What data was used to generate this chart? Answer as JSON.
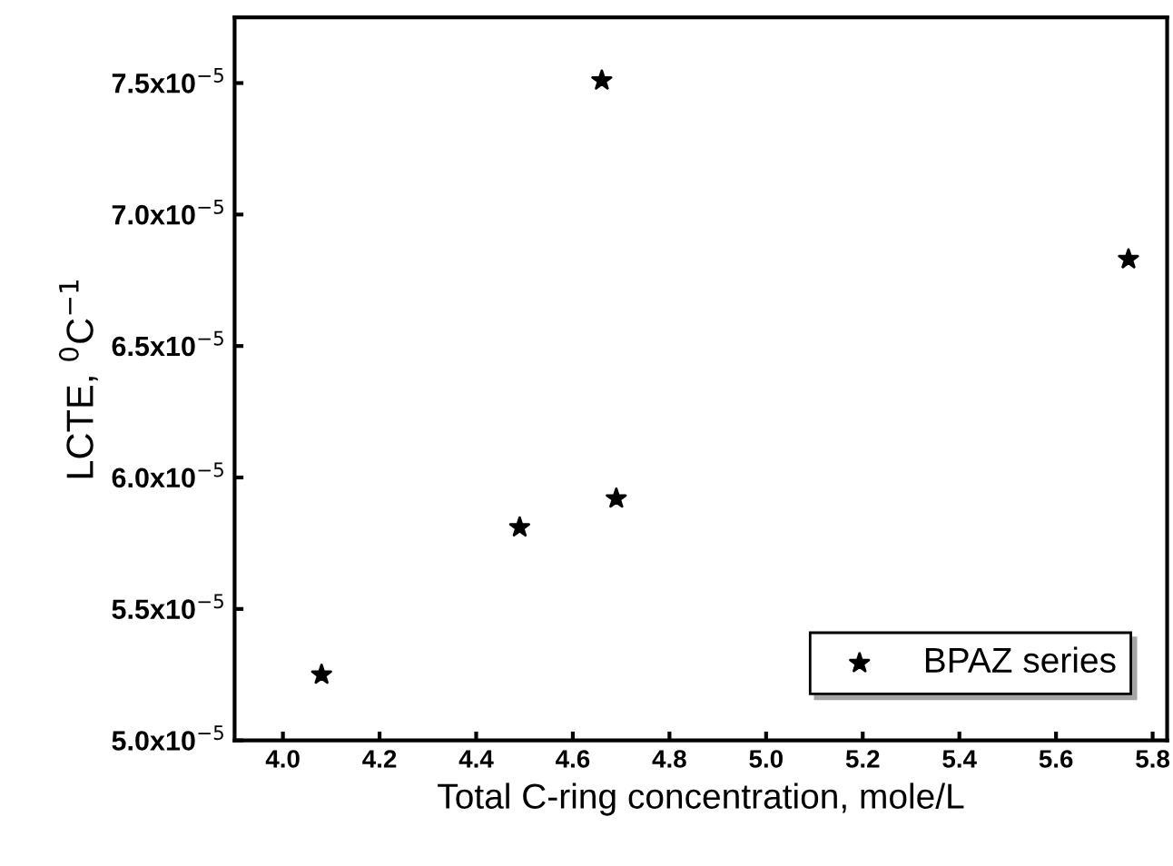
{
  "chart_data": {
    "type": "scatter",
    "xlabel": "Total C-ring concentration, mole/L",
    "ylabel": "LCTE, $^{0}$C$^{−1}$",
    "x": [
      4.08,
      4.49,
      4.66,
      4.69,
      5.75
    ],
    "series": [
      {
        "name": "BPAZ series",
        "color": "#000000",
        "values": [
          5.25e-05,
          5.81e-05,
          7.51e-05,
          5.92e-05,
          6.83e-05
        ]
      }
    ],
    "xlim": [
      3.9,
      5.83
    ],
    "xticks": [
      {
        "value": 4.0,
        "label": "4.0"
      },
      {
        "value": 4.2,
        "label": "4.2"
      },
      {
        "value": 4.4,
        "label": "4.4"
      },
      {
        "value": 4.6,
        "label": "4.6"
      },
      {
        "value": 4.8,
        "label": "4.8"
      },
      {
        "value": 5.0,
        "label": "5.0"
      },
      {
        "value": 5.2,
        "label": "5.2"
      },
      {
        "value": 5.4,
        "label": "5.4"
      },
      {
        "value": 5.6,
        "label": "5.6"
      },
      {
        "value": 5.8,
        "label": "5.8"
      }
    ],
    "ylim": [
      5e-05,
      7.75e-05
    ],
    "yticks": [
      {
        "value": 5e-05,
        "label": "5.0x10$^{−5}$"
      },
      {
        "value": 5.5e-05,
        "label": "5.5x10$^{−5}$"
      },
      {
        "value": 6e-05,
        "label": "6.0x10$^{−5}$"
      },
      {
        "value": 6.5e-05,
        "label": "6.5x10$^{−5}$"
      },
      {
        "value": 7e-05,
        "label": "7.0x10$^{−5}$"
      },
      {
        "value": 7.5e-05,
        "label": "7.5x10$^{−5}$"
      }
    ],
    "marker": "star",
    "legend": "bottom right",
    "grid": false
  }
}
